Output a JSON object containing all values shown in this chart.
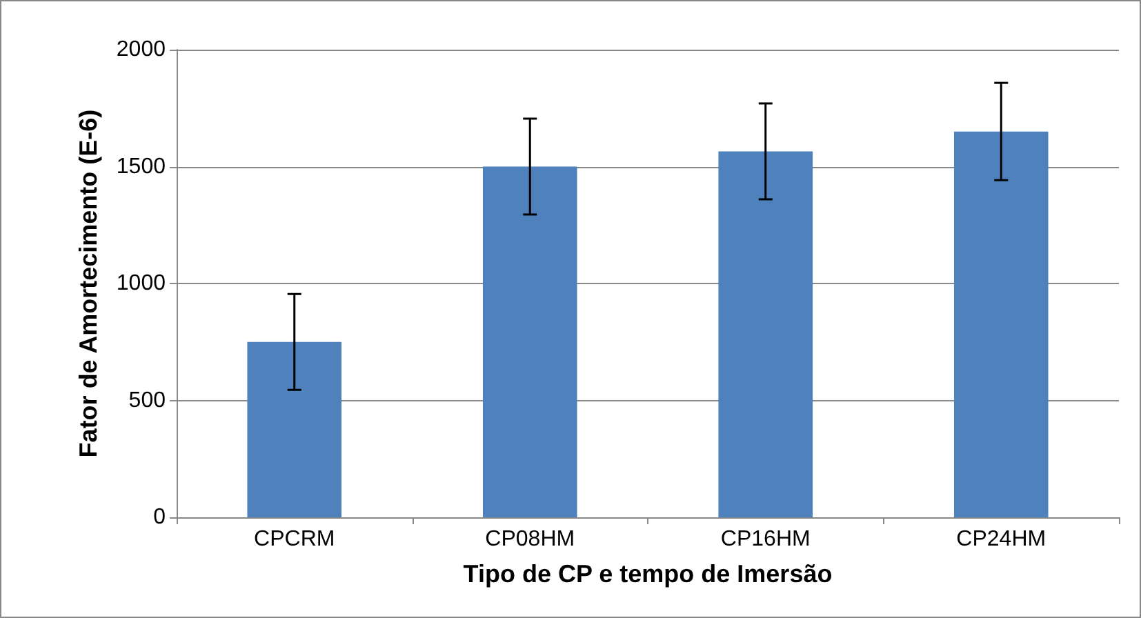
{
  "chart_data": {
    "type": "bar",
    "xlabel": "Tipo de CP e tempo de Imersão",
    "ylabel": "Fator de Amortecimento (E-6)",
    "categories": [
      "CPCRM",
      "CP08HM",
      "CP16HM",
      "CP24HM"
    ],
    "values": [
      750,
      1500,
      1565,
      1650
    ],
    "errors": [
      205,
      205,
      205,
      208
    ],
    "color": "#4f81bd",
    "ylim": [
      0,
      2000
    ],
    "yticks": [
      0,
      500,
      1000,
      1500,
      2000
    ],
    "grid": "y"
  }
}
